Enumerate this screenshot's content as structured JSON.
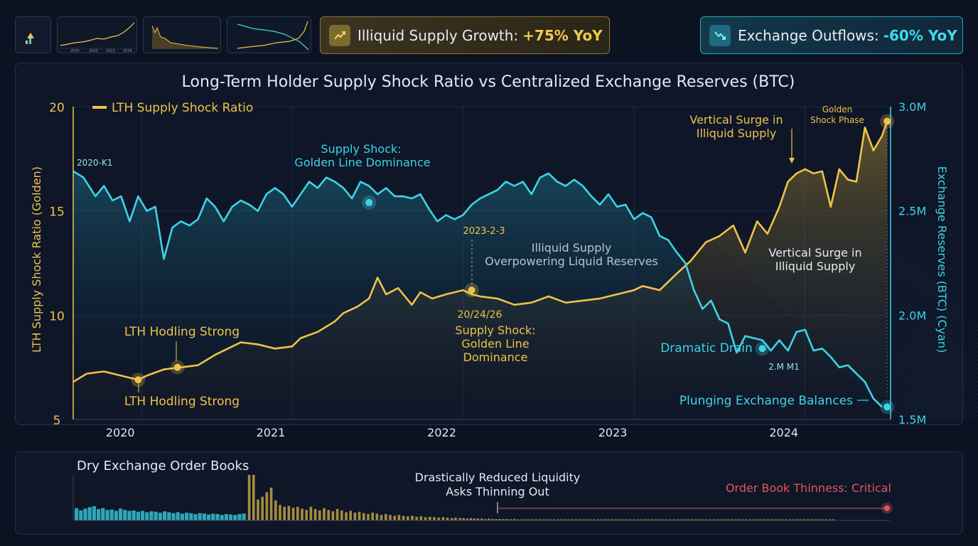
{
  "kpis": {
    "gold": {
      "label": "Illiquid Supply Growth:",
      "value": "+75% YoY",
      "icon": "trend-up-icon"
    },
    "cyan": {
      "label": "Exchange Outflows:",
      "value": "-60% YoY",
      "icon": "trend-down-icon"
    }
  },
  "thumbs": [
    {
      "name": "thumb-chart-gold-rise",
      "labels": [
        "2020",
        "2020",
        "2023",
        "2024"
      ]
    },
    {
      "name": "thumb-chart-gold-decline"
    },
    {
      "name": "thumb-chart-cross"
    }
  ],
  "colors": {
    "gold": "#f0c24a",
    "cyan": "#3fd3e6",
    "red": "#e0555e",
    "bg": "#0e1628"
  },
  "chart_data": [
    {
      "type": "line",
      "title": "Long-Term Holder Supply Shock Ratio vs Centralized Exchange Reserves (BTC)",
      "legend": "LTH Supply Shock Ratio",
      "legend_position": "top-left",
      "ylabel_left": "LTH Supply Shock Ratio (Golden)",
      "ylabel_right": "Exchange Reserves (BTC) (Cyan)",
      "left_ticks": [
        "20",
        "15",
        "10",
        "5"
      ],
      "right_ticks": [
        "3.0M",
        "2.5M",
        "2.0M",
        "1.5M"
      ],
      "x_ticks": [
        "2020",
        "2021",
        "2022",
        "2023",
        "2024"
      ],
      "xlim": [
        2019.72,
        2024.5
      ],
      "ylim_left": [
        5,
        20
      ],
      "ylim_right": [
        1500000,
        3000000
      ],
      "series": [
        {
          "name": "LTH Supply Shock Ratio",
          "axis": "left",
          "color": "#f0c24a",
          "x": [
            2019.72,
            2019.8,
            2019.9,
            2020.0,
            2020.1,
            2020.15,
            2020.25,
            2020.35,
            2020.45,
            2020.55,
            2020.6,
            2020.7,
            2020.8,
            2020.9,
            2021.0,
            2021.05,
            2021.15,
            2021.25,
            2021.3,
            2021.38,
            2021.45,
            2021.5,
            2021.55,
            2021.62,
            2021.7,
            2021.75,
            2021.82,
            2021.9,
            2022.0,
            2022.05,
            2022.1,
            2022.2,
            2022.3,
            2022.4,
            2022.5,
            2022.6,
            2022.7,
            2022.8,
            2022.9,
            2023.0,
            2023.05,
            2023.15,
            2023.25,
            2023.33,
            2023.42,
            2023.5,
            2023.58,
            2023.65,
            2023.72,
            2023.78,
            2023.85,
            2023.9,
            2023.95,
            2024.0,
            2024.05,
            2024.1,
            2024.15,
            2024.2,
            2024.25,
            2024.3,
            2024.35,
            2024.4,
            2024.45,
            2024.48
          ],
          "values": [
            6.8,
            7.2,
            7.3,
            7.1,
            6.9,
            7.1,
            7.4,
            7.5,
            7.6,
            8.1,
            8.3,
            8.7,
            8.6,
            8.4,
            8.5,
            8.9,
            9.2,
            9.7,
            10.1,
            10.4,
            10.8,
            11.8,
            11.0,
            11.3,
            10.5,
            11.1,
            10.8,
            11.0,
            11.2,
            11.0,
            10.9,
            10.8,
            10.5,
            10.6,
            10.9,
            10.6,
            10.7,
            10.8,
            11.0,
            11.2,
            11.4,
            11.2,
            12.0,
            12.6,
            13.5,
            13.8,
            14.3,
            13.0,
            14.5,
            13.9,
            15.2,
            16.4,
            16.8,
            17.0,
            16.8,
            16.9,
            15.2,
            17.0,
            16.5,
            16.4,
            19.0,
            17.9,
            18.6,
            19.3
          ]
        },
        {
          "name": "Exchange Reserves (BTC)",
          "axis": "right",
          "color": "#3fd3e6",
          "x": [
            2019.72,
            2019.78,
            2019.85,
            2019.9,
            2019.95,
            2020.0,
            2020.05,
            2020.1,
            2020.15,
            2020.2,
            2020.25,
            2020.3,
            2020.35,
            2020.4,
            2020.45,
            2020.5,
            2020.55,
            2020.6,
            2020.65,
            2020.7,
            2020.75,
            2020.8,
            2020.85,
            2020.9,
            2020.95,
            2021.0,
            2021.05,
            2021.1,
            2021.15,
            2021.2,
            2021.25,
            2021.3,
            2021.35,
            2021.4,
            2021.45,
            2021.5,
            2021.55,
            2021.6,
            2021.65,
            2021.7,
            2021.75,
            2021.8,
            2021.85,
            2021.9,
            2021.95,
            2022.0,
            2022.05,
            2022.1,
            2022.15,
            2022.2,
            2022.25,
            2022.3,
            2022.35,
            2022.4,
            2022.45,
            2022.5,
            2022.55,
            2022.6,
            2022.65,
            2022.7,
            2022.75,
            2022.8,
            2022.85,
            2022.9,
            2022.95,
            2023.0,
            2023.05,
            2023.1,
            2023.15,
            2023.2,
            2023.25,
            2023.3,
            2023.35,
            2023.4,
            2023.45,
            2023.5,
            2023.55,
            2023.6,
            2023.65,
            2023.7,
            2023.75,
            2023.8,
            2023.85,
            2023.9,
            2023.95,
            2024.0,
            2024.05,
            2024.1,
            2024.15,
            2024.2,
            2024.25,
            2024.3,
            2024.35,
            2024.4,
            2024.45
          ],
          "values": [
            2690000,
            2660000,
            2570000,
            2620000,
            2550000,
            2570000,
            2450000,
            2570000,
            2500000,
            2520000,
            2270000,
            2420000,
            2450000,
            2430000,
            2460000,
            2560000,
            2520000,
            2450000,
            2520000,
            2550000,
            2530000,
            2500000,
            2580000,
            2610000,
            2580000,
            2520000,
            2580000,
            2640000,
            2610000,
            2660000,
            2640000,
            2610000,
            2560000,
            2640000,
            2620000,
            2580000,
            2610000,
            2570000,
            2570000,
            2560000,
            2580000,
            2510000,
            2450000,
            2480000,
            2460000,
            2480000,
            2530000,
            2560000,
            2580000,
            2600000,
            2640000,
            2620000,
            2640000,
            2580000,
            2660000,
            2680000,
            2640000,
            2620000,
            2650000,
            2620000,
            2570000,
            2530000,
            2580000,
            2520000,
            2530000,
            2460000,
            2490000,
            2470000,
            2380000,
            2360000,
            2300000,
            2250000,
            2120000,
            2030000,
            2070000,
            1980000,
            1960000,
            1820000,
            1900000,
            1890000,
            1880000,
            1830000,
            1880000,
            1830000,
            1920000,
            1930000,
            1830000,
            1840000,
            1800000,
            1750000,
            1760000,
            1720000,
            1680000,
            1600000,
            1560000
          ]
        }
      ],
      "annotations": {
        "start_label": "2020-K1",
        "golden_phase": "Golden Shock Phase",
        "vertical_surge_top": "Vertical Surge in Illiquid Supply",
        "supply_shock_top": "Supply Shock: Golden Line Dominance",
        "date_2023": "2023-2-3",
        "illiquid_overpower": "Illiquid Supply Overpowering Liquid Reserves",
        "vertical_surge_mid": "Vertical Surge in Illiquid Supply",
        "lth_hodl_upper": "LTH Hodling Strong",
        "lth_hodl_lower": "LTH Hodling Strong",
        "date_2024": "20/24/26",
        "supply_shock_mid": "Supply Shock: Golden Line Dominance",
        "dramatic_drain": "Dramatic Drain",
        "mark_2m": "2.M M1",
        "plunging": "Plunging Exchange Balances"
      }
    },
    {
      "type": "bar",
      "title": "Dry Exchange Order Books",
      "annotation": "Drastically Reduced Liquidity Asks Thinning Out",
      "status": "Order Book Thinness: Critical",
      "teal_values": [
        0.27,
        0.22,
        0.26,
        0.29,
        0.31,
        0.25,
        0.27,
        0.23,
        0.24,
        0.21,
        0.26,
        0.23,
        0.21,
        0.22,
        0.19,
        0.21,
        0.18,
        0.2,
        0.19,
        0.17,
        0.2,
        0.18,
        0.16,
        0.18,
        0.15,
        0.17,
        0.16,
        0.14,
        0.16,
        0.15,
        0.13,
        0.15,
        0.14,
        0.12,
        0.14,
        0.13,
        0.12,
        0.14,
        0.15
      ],
      "gold_values": [
        1.0,
        1.0,
        0.46,
        0.52,
        0.62,
        0.72,
        0.44,
        0.34,
        0.3,
        0.32,
        0.28,
        0.3,
        0.26,
        0.23,
        0.3,
        0.25,
        0.22,
        0.27,
        0.23,
        0.2,
        0.25,
        0.22,
        0.18,
        0.21,
        0.17,
        0.19,
        0.16,
        0.14,
        0.17,
        0.15,
        0.12,
        0.14,
        0.12,
        0.1,
        0.12,
        0.1,
        0.09,
        0.1,
        0.08,
        0.09,
        0.07,
        0.08,
        0.07,
        0.06,
        0.07,
        0.06,
        0.05,
        0.06,
        0.05,
        0.05,
        0.04,
        0.05,
        0.04,
        0.04,
        0.04,
        0.03,
        0.04,
        0.03,
        0.03,
        0.03,
        0.03,
        0.03,
        0.02,
        0.03,
        0.02,
        0.02,
        0.02,
        0.02,
        0.02,
        0.02,
        0.02,
        0.02,
        0.02,
        0.02,
        0.02,
        0.02,
        0.02,
        0.02,
        0.02,
        0.02,
        0.02,
        0.02,
        0.02,
        0.02,
        0.02,
        0.02,
        0.02,
        0.02,
        0.02,
        0.02,
        0.02,
        0.02,
        0.02,
        0.02,
        0.02,
        0.02,
        0.02,
        0.02,
        0.02,
        0.02,
        0.02,
        0.02,
        0.02,
        0.02,
        0.02,
        0.02,
        0.02,
        0.02,
        0.02,
        0.02,
        0.02,
        0.02,
        0.02,
        0.02,
        0.02,
        0.02,
        0.02,
        0.02,
        0.02,
        0.02,
        0.02,
        0.02,
        0.02,
        0.02,
        0.02,
        0.02,
        0.02,
        0.02,
        0.02,
        0.02,
        0.02,
        0.02,
        0.02,
        0.02,
        0.02,
        0.02,
        0.02,
        0.02,
        0.02,
        0.02,
        0.02,
        0.02,
        0.02,
        0.02,
        0.02,
        0.02,
        0.02,
        0.02,
        0.02,
        0.02,
        0.02,
        0.02
      ]
    }
  ]
}
